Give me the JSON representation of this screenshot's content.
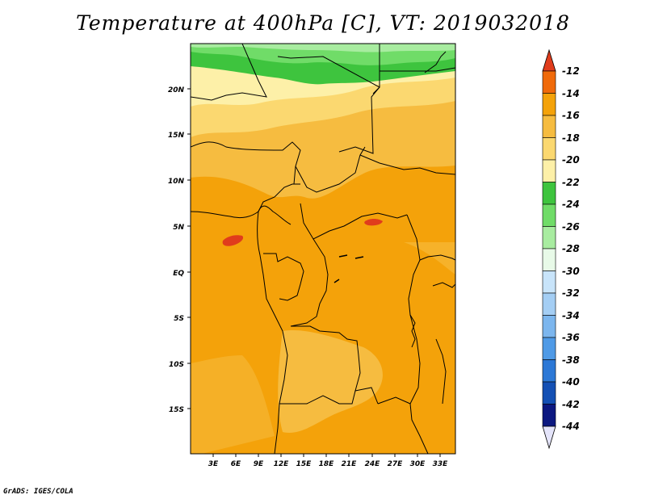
{
  "title": "Temperature at 400hPa [C], VT: 2019032018",
  "footer": "GrADS: IGES/COLA",
  "map": {
    "lat_labels": [
      "20N",
      "15N",
      "10N",
      "5N",
      "EQ",
      "5S",
      "10S",
      "15S"
    ],
    "lon_labels": [
      "3E",
      "6E",
      "9E",
      "12E",
      "15E",
      "18E",
      "21E",
      "24E",
      "27E",
      "30E",
      "33E"
    ]
  },
  "colorbar": {
    "labels": [
      "-12",
      "-14",
      "-16",
      "-18",
      "-20",
      "-22",
      "-24",
      "-26",
      "-28",
      "-30",
      "-32",
      "-34",
      "-36",
      "-38",
      "-40",
      "-42",
      "-44"
    ],
    "colors": [
      "#e03c1c",
      "#f06a0a",
      "#f4a20a",
      "#f6bc40",
      "#fbd870",
      "#fdf0a8",
      "#3ec43e",
      "#70dc68",
      "#a8eca0",
      "#e8fae8",
      "#c8e4fa",
      "#a4cef4",
      "#7cb6ee",
      "#4f9ae6",
      "#2c78d6",
      "#1450b4",
      "#0c1880",
      "#e4e4fa"
    ]
  }
}
